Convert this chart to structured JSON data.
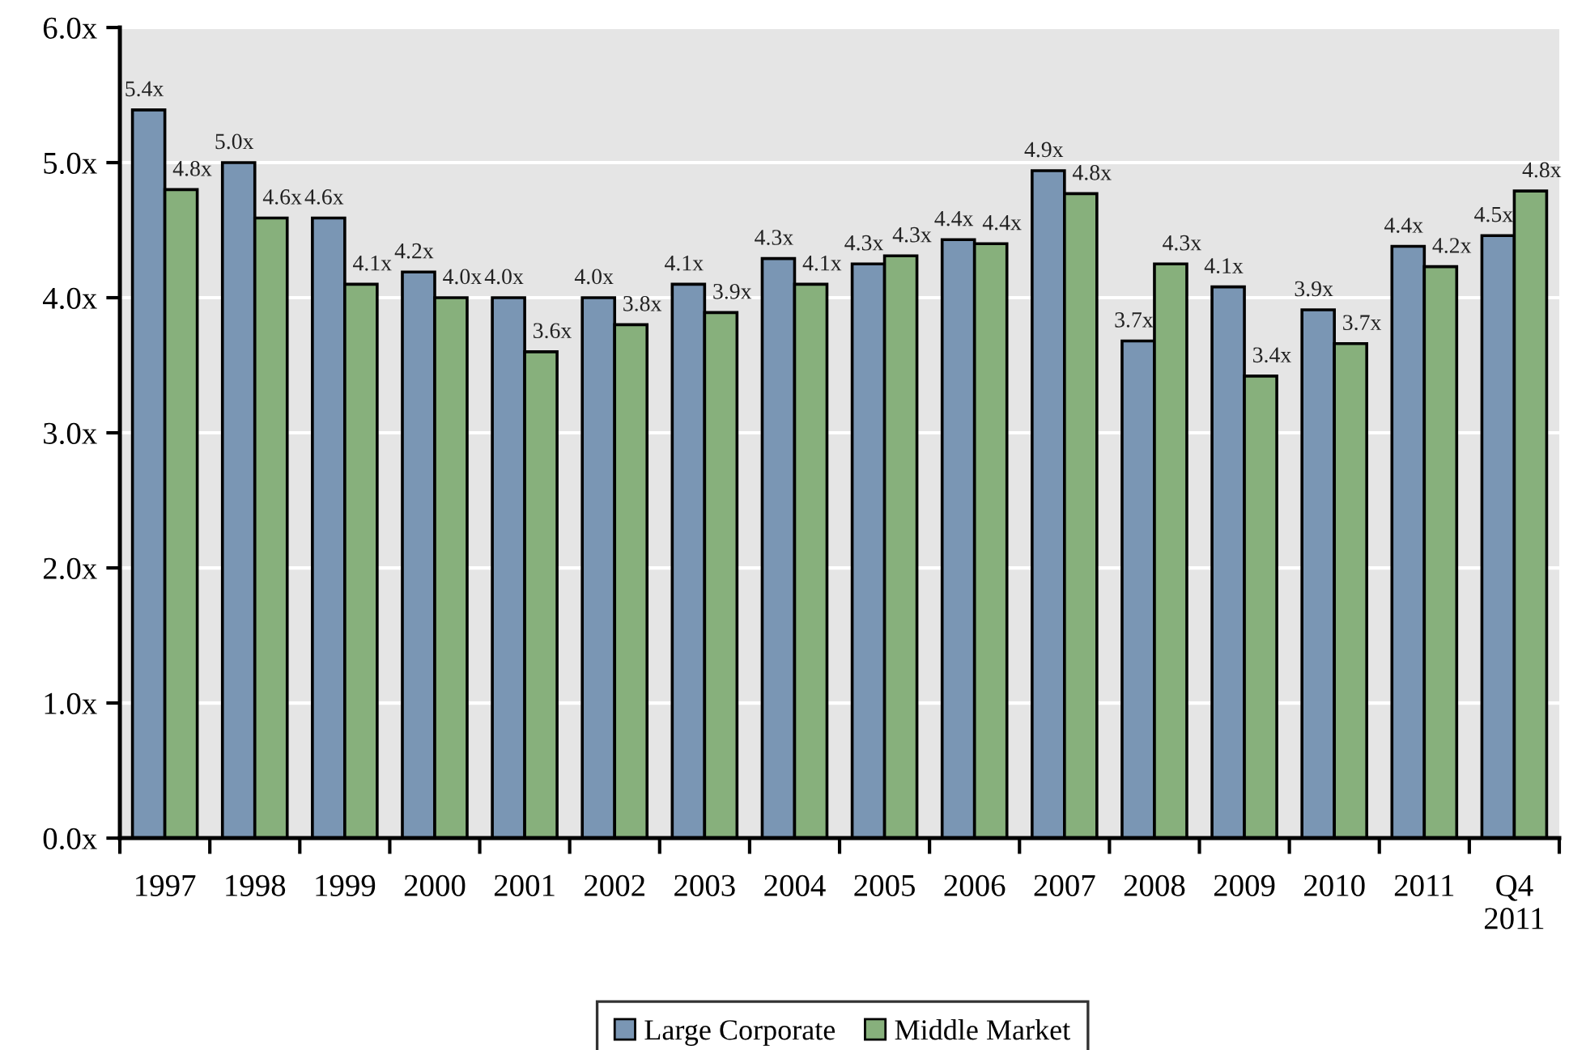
{
  "chart_data": {
    "type": "bar",
    "categories": [
      "1997",
      "1998",
      "1999",
      "2000",
      "2001",
      "2002",
      "2003",
      "2004",
      "2005",
      "2006",
      "2007",
      "2008",
      "2009",
      "2010",
      "2011",
      "Q4\n2011"
    ],
    "series": [
      {
        "name": "Large Corporate",
        "color": "#7a96b4",
        "values": [
          5.39,
          5.0,
          4.59,
          4.19,
          4.0,
          4.0,
          4.1,
          4.29,
          4.25,
          4.43,
          4.94,
          3.68,
          4.08,
          3.91,
          4.38,
          4.46
        ],
        "value_labels": [
          "5.4x",
          "5.0x",
          "4.6x",
          "4.2x",
          "4.0x",
          "4.0x",
          "4.1x",
          "4.3x",
          "4.3x",
          "4.4x",
          "4.9x",
          "3.7x",
          "4.1x",
          "3.9x",
          "4.4x",
          "4.5x"
        ]
      },
      {
        "name": "Middle Market",
        "color": "#87b07c",
        "values": [
          4.8,
          4.59,
          4.1,
          4.0,
          3.6,
          3.8,
          3.89,
          4.1,
          4.31,
          4.4,
          4.77,
          4.25,
          3.42,
          3.66,
          4.23,
          4.79
        ],
        "value_labels": [
          "4.8x",
          "4.6x",
          "4.1x",
          "4.0x",
          "3.6x",
          "3.8x",
          "3.9x",
          "4.1x",
          "4.3x",
          "4.4x",
          "4.8x",
          "4.3x",
          "3.4x",
          "3.7x",
          "4.2x",
          "4.8x"
        ]
      }
    ],
    "ylim": [
      0,
      6
    ],
    "yticks": [
      {
        "value": 0,
        "label": "0.0x"
      },
      {
        "value": 1,
        "label": "1.0x"
      },
      {
        "value": 2,
        "label": "2.0x"
      },
      {
        "value": 3,
        "label": "3.0x"
      },
      {
        "value": 4,
        "label": "4.0x"
      },
      {
        "value": 5,
        "label": "5.0x"
      },
      {
        "value": 6,
        "label": "6.0x"
      }
    ],
    "grid": "y",
    "legend": "bottom"
  }
}
